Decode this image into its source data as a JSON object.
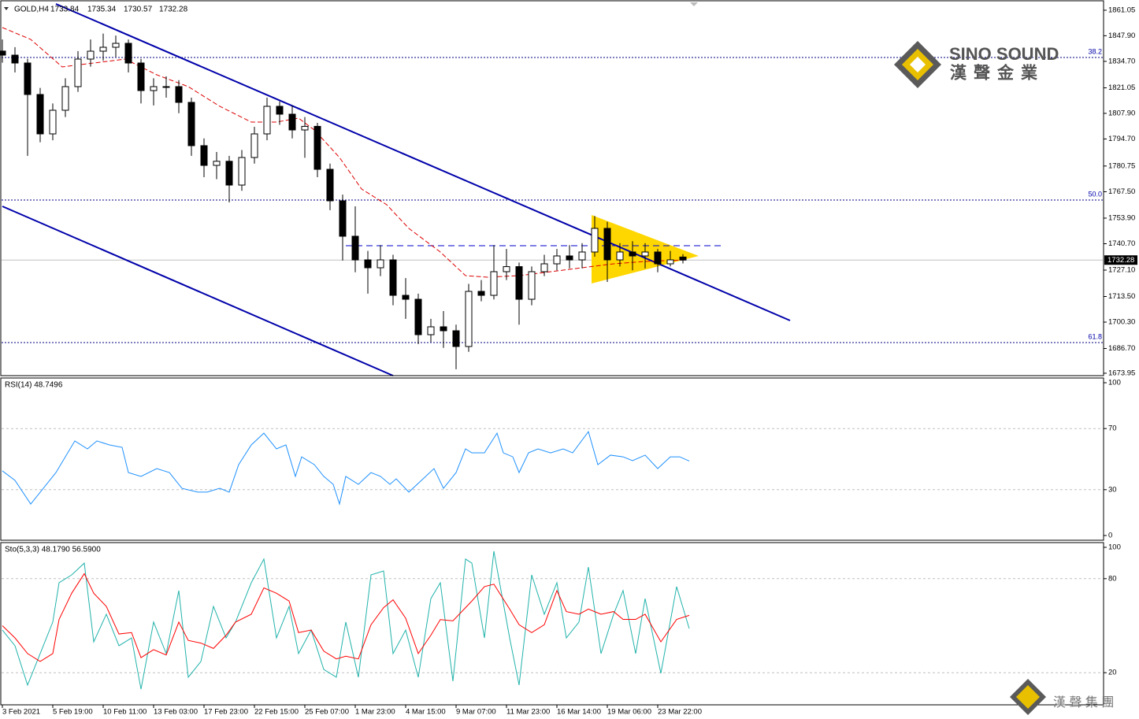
{
  "logo": {
    "name": "SINO SOUND",
    "chinese": "漢聲金業",
    "footer": "漢 聲 集 團"
  },
  "chart_data": [
    {
      "type": "candlestick",
      "symbol": "GOLD,H4",
      "x": [
        0,
        4,
        8,
        12,
        16,
        20,
        24,
        28,
        32,
        36,
        40,
        44,
        48,
        52,
        56,
        60,
        64,
        68,
        72,
        76,
        80,
        84,
        88,
        92,
        96,
        100,
        104,
        108,
        112,
        116,
        120,
        124,
        128,
        132,
        136,
        140,
        144,
        148,
        152,
        156,
        160,
        164,
        168,
        172,
        176,
        180,
        184,
        188,
        192,
        196,
        200,
        204,
        208,
        212,
        216
      ],
      "open": [
        1840.0,
        1837.91,
        1833.85,
        1817.62,
        1797.32,
        1809.5,
        1821.68,
        1835.88,
        1839.94,
        1841.97,
        1844.0,
        1833.85,
        1819.65,
        1821.68,
        1821.68,
        1813.56,
        1791.24,
        1781.09,
        1783.2,
        1770.94,
        1785.15,
        1797.32,
        1811.53,
        1807.47,
        1799.35,
        1801.2,
        1779.06,
        1762.82,
        1744.56,
        1732.38,
        1728.32,
        1732.38,
        1714.11,
        1712.08,
        1693.82,
        1697.88,
        1695.85,
        1687.73,
        1716.14,
        1714.11,
        1726.29,
        1728.9,
        1712.08,
        1726.29,
        1730.35,
        1734.41,
        1732.38,
        1736.44,
        1748.62,
        1732.38,
        1736.44,
        1734.41,
        1736.44,
        1730.35,
        1733.84
      ],
      "high": [
        1846.0,
        1842.0,
        1836.0,
        1821.0,
        1813.0,
        1826.0,
        1840.0,
        1846.0,
        1849.0,
        1848.0,
        1846.0,
        1836.0,
        1826.0,
        1827.0,
        1825.0,
        1816.0,
        1795.0,
        1788.0,
        1786.0,
        1789.0,
        1801.0,
        1816.0,
        1814.0,
        1812.0,
        1806.0,
        1803.0,
        1782.0,
        1766.0,
        1760.0,
        1737.0,
        1740.0,
        1735.0,
        1723.0,
        1715.0,
        1702.0,
        1706.0,
        1699.0,
        1720.0,
        1722.0,
        1740.0,
        1738.0,
        1731.0,
        1729.0,
        1735.0,
        1738.0,
        1740.0,
        1741.0,
        1755.0,
        1752.0,
        1741.0,
        1742.0,
        1741.0,
        1738.0,
        1737.0,
        1735.34
      ],
      "low": [
        1834.0,
        1829.0,
        1786.0,
        1793.0,
        1794.0,
        1806.0,
        1819.0,
        1832.0,
        1835.0,
        1837.0,
        1829.0,
        1813.0,
        1812.0,
        1816.0,
        1808.0,
        1786.0,
        1775.0,
        1774.0,
        1762.0,
        1768.0,
        1782.0,
        1794.0,
        1802.0,
        1795.0,
        1785.0,
        1775.0,
        1758.0,
        1732.0,
        1726.0,
        1715.0,
        1724.0,
        1709.0,
        1702.0,
        1689.0,
        1690.0,
        1687.0,
        1676.0,
        1685.0,
        1711.0,
        1712.0,
        1722.0,
        1699.0,
        1709.0,
        1724.0,
        1727.0,
        1728.0,
        1728.0,
        1734.0,
        1721.0,
        1729.0,
        1727.0,
        1728.0,
        1726.0,
        1729.0,
        1730.57
      ],
      "close": [
        1837.91,
        1833.85,
        1817.62,
        1797.32,
        1809.5,
        1821.68,
        1835.88,
        1839.94,
        1841.97,
        1844.0,
        1833.85,
        1819.65,
        1821.68,
        1821.68,
        1813.56,
        1791.24,
        1781.09,
        1783.2,
        1770.94,
        1785.15,
        1797.32,
        1811.53,
        1807.47,
        1799.35,
        1801.2,
        1779.06,
        1762.82,
        1744.56,
        1732.38,
        1728.32,
        1732.38,
        1714.11,
        1712.08,
        1693.82,
        1697.88,
        1695.85,
        1687.73,
        1716.14,
        1714.11,
        1726.29,
        1728.9,
        1712.08,
        1726.29,
        1730.35,
        1734.41,
        1732.38,
        1736.44,
        1748.62,
        1732.38,
        1736.44,
        1734.41,
        1736.44,
        1730.35,
        1732.38,
        1732.28
      ],
      "up_color": "#ffffff",
      "down_color": "#000000",
      "outline_color": "#000000",
      "ma": {
        "color": "#dd0000",
        "x": [
          0,
          9,
          19,
          29,
          39,
          49,
          59,
          69,
          79,
          87,
          94,
          99,
          107,
          114,
          122,
          129,
          139,
          147,
          154,
          164,
          174,
          184,
          194,
          204,
          217
        ],
        "values": [
          1852.12,
          1846.03,
          1831.83,
          1833.85,
          1835.88,
          1827.77,
          1821.68,
          1811.53,
          1803.41,
          1803.41,
          1805.44,
          1799.35,
          1785.15,
          1768.91,
          1760.79,
          1748.62,
          1736.44,
          1724.26,
          1723.45,
          1724.26,
          1726.29,
          1728.32,
          1730.35,
          1731.57,
          1732.38
        ]
      },
      "trendlines": [
        {
          "x": [
            17,
            250
          ],
          "y": [
            1864.3,
            1701.12
          ],
          "color": "#0000aa"
        },
        {
          "x": [
            0,
            124
          ],
          "y": [
            1759.98,
            1672.71
          ],
          "color": "#0000aa"
        }
      ],
      "triangle": {
        "x": [
          187,
          187,
          221
        ],
        "y": [
          1755.52,
          1720.2,
          1734.41
        ],
        "color": "#ffd700"
      },
      "hline": {
        "x": [
          109,
          228
        ],
        "y": 1739.69,
        "color": "#0000cc"
      },
      "fib_levels": [
        {
          "label": "38.2",
          "value": 1836.7
        },
        {
          "label": "50.0",
          "value": 1763.23
        },
        {
          "label": "61.8",
          "value": 1689.76
        }
      ],
      "xlim": [
        0,
        349.25
      ],
      "ylim": [
        1672.71,
        1865.92
      ],
      "yticks": [
        1861.05,
        {
          "value": 1847.9,
          "label": "1847.90"
        },
        {
          "value": 1834.7,
          "label": "1834.70"
        },
        1821.05,
        {
          "value": 1807.9,
          "label": "1807.90"
        },
        {
          "value": 1794.7,
          "label": "1794.70"
        },
        1780.75,
        {
          "value": 1767.5,
          "label": "1767.50"
        },
        {
          "value": 1753.9,
          "label": "1753.90"
        },
        {
          "value": 1740.7,
          "label": "1740.70"
        },
        {
          "value": 1727.1,
          "label": "1727.10"
        },
        {
          "value": 1713.5,
          "label": "1713.50"
        },
        {
          "value": 1700.3,
          "label": "1700.30"
        },
        {
          "value": 1686.7,
          "label": "1686.70"
        },
        1673.95
      ],
      "xticks": [
        {
          "value": 0,
          "label": "3 Feb 2021"
        },
        {
          "value": 16,
          "label": "5 Feb 19:00"
        },
        {
          "value": 32,
          "label": "10 Feb 11:00"
        },
        {
          "value": 48,
          "label": "13 Feb 03:00"
        },
        {
          "value": 64,
          "label": "17 Feb 23:00"
        },
        {
          "value": 80,
          "label": "22 Feb 15:00"
        },
        {
          "value": 96,
          "label": "25 Feb 07:00"
        },
        {
          "value": 112,
          "label": "1 Mar 23:00"
        },
        {
          "value": 128,
          "label": "4 Mar 15:00"
        },
        {
          "value": 144,
          "label": "9 Mar 07:00"
        },
        {
          "value": 160,
          "label": "11 Mar 23:00"
        },
        {
          "value": 176,
          "label": "16 Mar 14:00"
        },
        {
          "value": 192,
          "label": "19 Mar 06:00"
        },
        {
          "value": 208,
          "label": "23 Mar 22:00"
        }
      ]
    },
    {
      "type": "line",
      "title": "RSI(14) 48.7496",
      "color": "#1e90ff",
      "x": [
        0,
        4,
        9,
        13,
        17,
        23,
        27,
        30,
        34,
        38,
        40,
        44,
        49,
        53,
        57,
        62,
        65,
        69,
        72,
        75,
        79,
        83,
        87,
        90,
        93,
        95,
        99,
        102,
        105,
        107,
        109,
        113,
        117,
        120,
        123,
        125,
        129,
        133,
        137,
        140,
        144,
        147,
        149,
        153,
        157,
        159,
        162,
        164,
        167,
        170,
        174,
        178,
        181,
        186,
        189,
        193,
        197,
        200,
        204,
        208,
        212,
        215,
        218
      ],
      "values": [
        42.3,
        36.1,
        20.6,
        30.9,
        41.2,
        61.9,
        56.7,
        61.9,
        59.3,
        57.7,
        41.2,
        38.7,
        43.8,
        41.2,
        30.9,
        28.4,
        28.4,
        30.9,
        28.4,
        46.4,
        59.3,
        67.0,
        56.7,
        59.3,
        38.7,
        51.5,
        46.4,
        38.7,
        33.5,
        20.6,
        38.7,
        33.5,
        41.2,
        38.7,
        33.5,
        37.1,
        28.4,
        36.1,
        43.8,
        30.9,
        41.2,
        56.7,
        54.1,
        54.1,
        67.0,
        54.1,
        51.5,
        41.2,
        54.1,
        56.7,
        54.1,
        56.7,
        54.1,
        68.0,
        46.4,
        52.6,
        51.5,
        49.0,
        52.6,
        43.8,
        51.5,
        51.5,
        48.7496
      ],
      "ylim": [
        0,
        100
      ],
      "yticks": [
        100,
        70,
        30,
        0
      ],
      "levels": [
        70,
        30
      ]
    },
    {
      "type": "stochastic",
      "title": "Sto(5,3,3) 48.1790 56.5900",
      "x": [
        0,
        4,
        8,
        12,
        16,
        18,
        22,
        26,
        29,
        33,
        37,
        41,
        44,
        48,
        52,
        56,
        59,
        63,
        67,
        71,
        74,
        79,
        83,
        87,
        91,
        94,
        98,
        102,
        106,
        109,
        113,
        117,
        121,
        124,
        128,
        132,
        136,
        139,
        143,
        147,
        149,
        153,
        156,
        161,
        164,
        168,
        172,
        176,
        179,
        183,
        186,
        190,
        194,
        197,
        201,
        204,
        209,
        214,
        218
      ],
      "series": [
        {
          "color": "#20b2aa",
          "values": [
            47.2,
            37.2,
            12.1,
            32.2,
            52.3,
            77.4,
            82.4,
            89.9,
            39.7,
            57.3,
            37.2,
            42.2,
            9.5,
            52.3,
            32.2,
            72.4,
            17.1,
            27.1,
            62.3,
            42.2,
            52.3,
            77.4,
            92.5,
            42.2,
            62.3,
            32.2,
            47.2,
            22.1,
            17.1,
            52.3,
            17.1,
            82.4,
            84.9,
            32.2,
            47.2,
            17.1,
            67.3,
            77.4,
            14.6,
            92.5,
            89.9,
            42.2,
            97.5,
            42.2,
            12.1,
            82.4,
            57.3,
            77.4,
            42.2,
            52.3,
            87.4,
            32.2,
            57.3,
            72.4,
            32.2,
            67.3,
            19.6,
            74.9,
            48.179
          ]
        },
        {
          "color": "#ff0000",
          "values": [
            50.0,
            42.2,
            32.2,
            27.2,
            32.2,
            54.0,
            70.7,
            83.2,
            70.7,
            62.3,
            44.7,
            45.6,
            29.6,
            34.7,
            31.3,
            52.3,
            40.6,
            38.9,
            35.5,
            43.9,
            52.3,
            57.3,
            74.1,
            70.7,
            65.7,
            45.6,
            47.2,
            33.8,
            28.8,
            30.5,
            28.8,
            50.6,
            61.5,
            66.5,
            54.8,
            32.2,
            43.9,
            53.9,
            53.1,
            61.5,
            65.7,
            74.9,
            76.5,
            60.6,
            50.6,
            45.6,
            50.6,
            72.4,
            59.0,
            57.3,
            60.6,
            57.3,
            59.0,
            54.0,
            54.0,
            57.3,
            39.7,
            54.0,
            56.59
          ]
        }
      ],
      "ylim": [
        0,
        100
      ],
      "yticks": [
        100,
        80,
        20
      ],
      "levels": [
        80,
        20
      ]
    }
  ]
}
